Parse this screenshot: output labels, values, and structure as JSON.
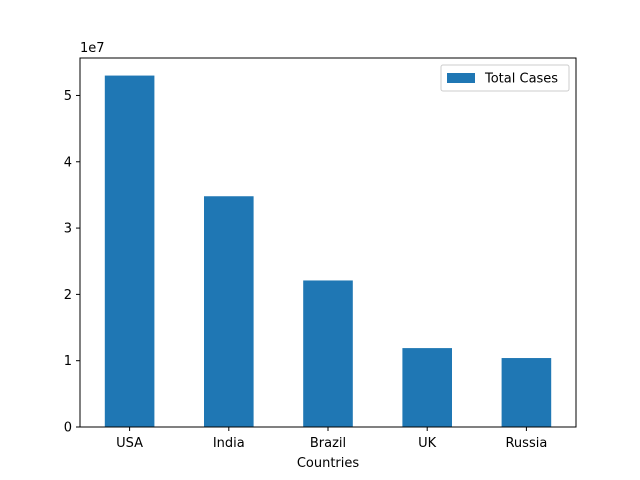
{
  "chart_data": {
    "type": "bar",
    "categories": [
      "USA",
      "India",
      "Brazil",
      "UK",
      "Russia"
    ],
    "series": [
      {
        "name": "Total Cases",
        "values": [
          53000000,
          34800000,
          22100000,
          11900000,
          10400000
        ],
        "color": "#1f77b4"
      }
    ],
    "xlabel": "Countries",
    "ylabel": "",
    "ylim": [
      0,
      55650000
    ],
    "y_scale_note": "1e7",
    "y_ticks": [
      0,
      10000000,
      20000000,
      30000000,
      40000000,
      50000000
    ],
    "y_tick_labels": [
      "0",
      "1",
      "2",
      "3",
      "4",
      "5"
    ],
    "grid": false,
    "legend": {
      "position": "top-right",
      "entries": [
        "Total Cases"
      ]
    }
  }
}
